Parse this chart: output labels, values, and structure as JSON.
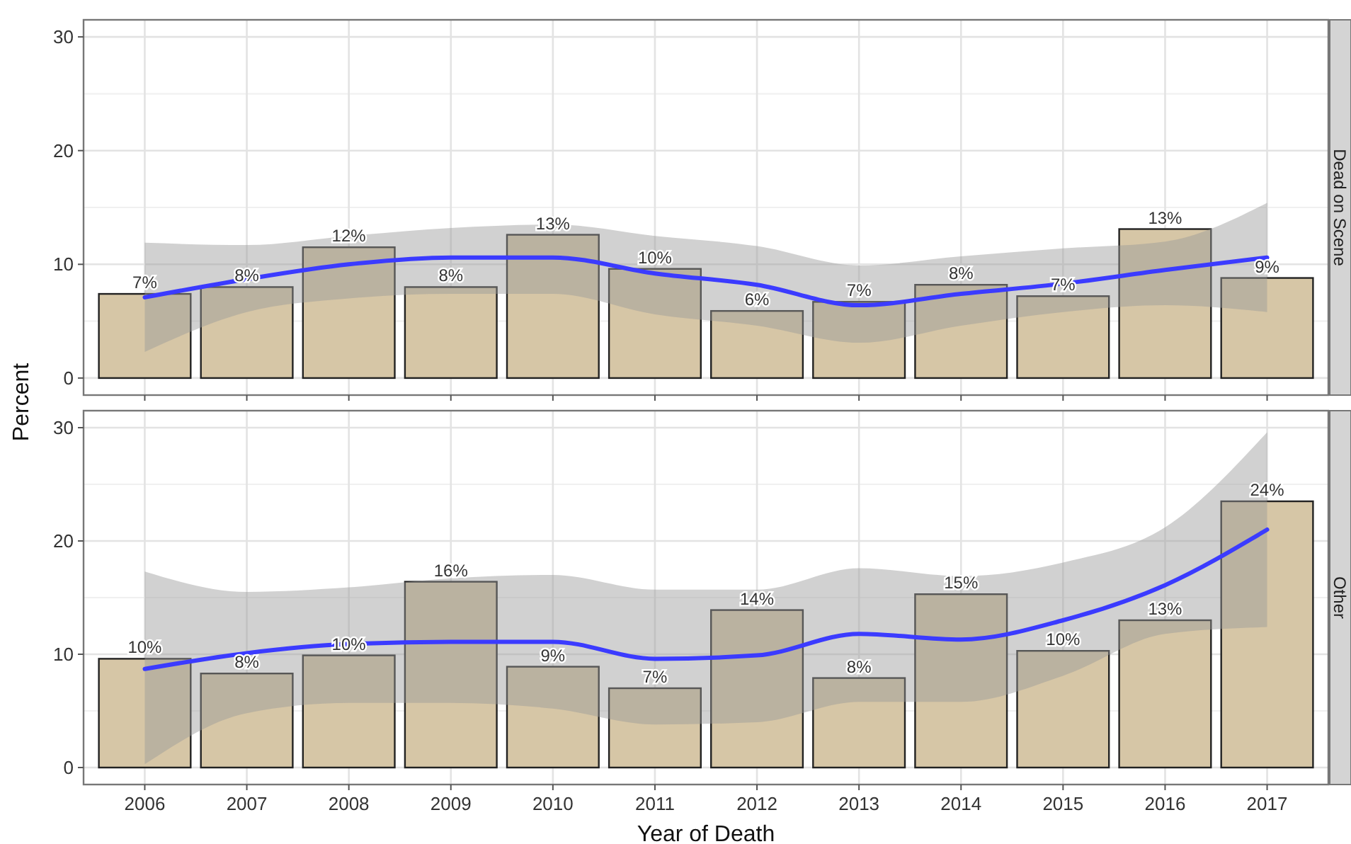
{
  "chart_data": [
    {
      "type": "bar",
      "title": "Dead on Scene",
      "ylabel": "Percent",
      "categories": [
        "2006",
        "2007",
        "2008",
        "2009",
        "2010",
        "2011",
        "2012",
        "2013",
        "2014",
        "2015",
        "2016",
        "2017"
      ],
      "ylim": [
        -1.5,
        31.5
      ],
      "yticks": [
        0,
        10,
        20,
        30
      ],
      "grid": true,
      "tick_labels": "y",
      "series": [
        {
          "color": "#d6c6a6",
          "values": [
            7.4,
            8.0,
            11.5,
            8.0,
            12.6,
            9.6,
            5.9,
            6.7,
            8.2,
            7.2,
            13.1,
            8.8
          ],
          "value_labels": [
            "7%",
            "8%",
            "12%",
            "8%",
            "13%",
            "10%",
            "6%",
            "7%",
            "8%",
            "7%",
            "13%",
            "9%"
          ]
        },
        {
          "type": "line",
          "color": "#3b3bff",
          "values": [
            7.1,
            8.7,
            10.0,
            10.6,
            10.6,
            9.2,
            8.2,
            6.4,
            7.4,
            8.3,
            9.5,
            10.6
          ],
          "lower": [
            2.3,
            5.8,
            7.0,
            7.4,
            7.4,
            5.6,
            4.6,
            3.1,
            4.6,
            5.8,
            6.4,
            5.8
          ],
          "upper": [
            11.9,
            11.7,
            12.5,
            13.2,
            13.5,
            12.5,
            11.6,
            9.9,
            10.7,
            11.4,
            12.0,
            15.4
          ]
        }
      ]
    },
    {
      "type": "bar",
      "title": "Other",
      "xlabel": "Year of Death",
      "categories": [
        "2006",
        "2007",
        "2008",
        "2009",
        "2010",
        "2011",
        "2012",
        "2013",
        "2014",
        "2015",
        "2016",
        "2017"
      ],
      "ylim": [
        -1.5,
        31.5
      ],
      "yticks": [
        0,
        10,
        20,
        30
      ],
      "grid": true,
      "series": [
        {
          "color": "#d6c6a6",
          "values": [
            9.6,
            8.3,
            9.9,
            16.4,
            8.9,
            7.0,
            13.9,
            7.9,
            15.3,
            10.3,
            13.0,
            23.5
          ],
          "value_labels": [
            "10%",
            "8%",
            "10%",
            "16%",
            "9%",
            "7%",
            "14%",
            "8%",
            "15%",
            "10%",
            "13%",
            "24%"
          ]
        },
        {
          "type": "line",
          "color": "#3b3bff",
          "values": [
            8.7,
            10.1,
            10.9,
            11.1,
            11.1,
            9.6,
            9.9,
            11.8,
            11.3,
            13.0,
            16.1,
            21.0
          ],
          "lower": [
            0.3,
            4.8,
            5.7,
            5.7,
            5.2,
            3.8,
            4.0,
            5.8,
            5.8,
            8.1,
            11.8,
            12.4
          ],
          "upper": [
            17.3,
            15.5,
            15.9,
            16.7,
            17.0,
            15.7,
            15.7,
            17.6,
            16.9,
            18.1,
            21.2,
            29.6
          ]
        }
      ]
    }
  ]
}
